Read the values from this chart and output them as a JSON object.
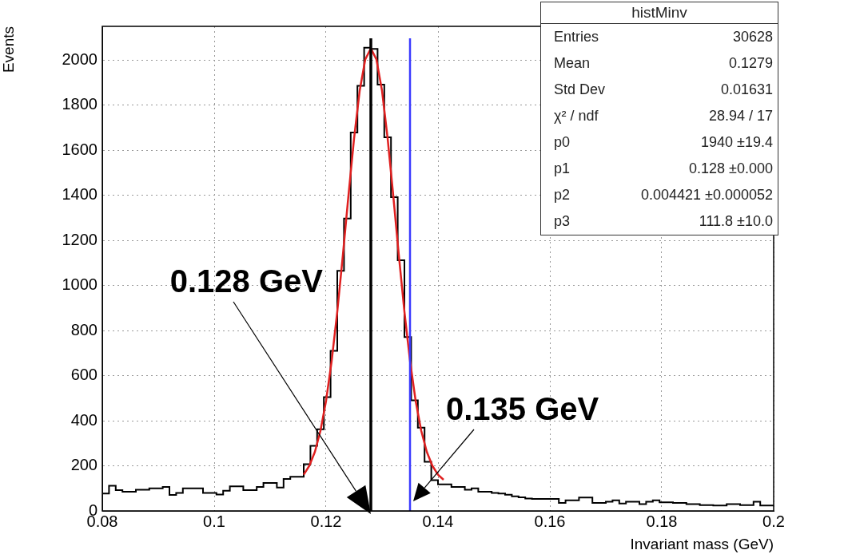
{
  "chart_data": {
    "type": "histogram",
    "xlabel": "Invariant mass (GeV)",
    "ylabel": "Events",
    "color": "#000000",
    "bins": [
      0.08,
      0.0812,
      0.0824,
      0.0836,
      0.0848,
      0.086,
      0.0872,
      0.0884,
      0.0896,
      0.0908,
      0.092,
      0.0932,
      0.0944,
      0.0956,
      0.0968,
      0.098,
      0.0992,
      0.1004,
      0.1016,
      0.1028,
      0.104,
      0.1052,
      0.1064,
      0.1076,
      0.1088,
      0.11,
      0.1112,
      0.1124,
      0.1136,
      0.1148,
      0.116,
      0.1172,
      0.1184,
      0.1196,
      0.1208,
      0.122,
      0.1232,
      0.1244,
      0.1256,
      0.1268,
      0.128,
      0.1292,
      0.1304,
      0.1316,
      0.1328,
      0.134,
      0.1352,
      0.1364,
      0.1376,
      0.1388,
      0.14,
      0.1412,
      0.1424,
      0.1436,
      0.1448,
      0.146,
      0.1472,
      0.1484,
      0.1496,
      0.1508,
      0.152,
      0.1532,
      0.1544,
      0.1556,
      0.1568,
      0.158,
      0.1592,
      0.1604,
      0.1616,
      0.1628,
      0.164,
      0.1652,
      0.1664,
      0.1676,
      0.1688,
      0.17,
      0.1712,
      0.1724,
      0.1736,
      0.1748,
      0.176,
      0.1772,
      0.1784,
      0.1796,
      0.1808,
      0.182,
      0.1832,
      0.1844,
      0.1856,
      0.1868,
      0.188,
      0.1892,
      0.1904,
      0.1916,
      0.1928,
      0.194,
      0.1952,
      0.1964,
      0.1976,
      0.1988,
      0.2
    ],
    "values": [
      77,
      112,
      92,
      85,
      85,
      94,
      94,
      100,
      100,
      106,
      71,
      80,
      100,
      100,
      100,
      80,
      80,
      73,
      89,
      109,
      109,
      92,
      92,
      106,
      124,
      124,
      104,
      142,
      151,
      151,
      207,
      289,
      362,
      505,
      710,
      1065,
      1297,
      1679,
      1886,
      2055,
      2050,
      1891,
      1658,
      1392,
      1112,
      771,
      491,
      369,
      218,
      136,
      118,
      118,
      106,
      106,
      94,
      100,
      85,
      85,
      80,
      77,
      72,
      65,
      60,
      55,
      53,
      53,
      53,
      53,
      35,
      47,
      47,
      59,
      59,
      35,
      35,
      41,
      47,
      33,
      41,
      41,
      30,
      41,
      47,
      38,
      38,
      35,
      35,
      30,
      30,
      26,
      26,
      24,
      24,
      30,
      30,
      26,
      26,
      41,
      24,
      24
    ],
    "series": [
      {
        "type": "line",
        "color": "#e02020",
        "x": [
          0.116,
          0.117,
          0.118,
          0.119,
          0.12,
          0.121,
          0.122,
          0.123,
          0.124,
          0.125,
          0.126,
          0.127,
          0.128,
          0.129,
          0.13,
          0.131,
          0.132,
          0.133,
          0.134,
          0.135,
          0.136,
          0.137,
          0.138,
          0.139,
          0.14,
          0.141
        ],
        "values": [
          161,
          200,
          262,
          356,
          489,
          666,
          884,
          1135,
          1400,
          1653,
          1864,
          2003,
          2052,
          2003,
          1864,
          1653,
          1400,
          1135,
          884,
          666,
          489,
          356,
          262,
          200,
          161,
          138
        ]
      }
    ],
    "xlim": [
      0.08,
      0.2
    ],
    "xticks": [
      0.08,
      0.1,
      0.12,
      0.14,
      0.16,
      0.18,
      0.2
    ],
    "ylim": [
      0,
      2150
    ],
    "yticks": [
      0,
      200,
      400,
      600,
      800,
      1000,
      1200,
      1400,
      1600,
      1800,
      2000
    ],
    "grid": true,
    "legend": false,
    "ref_lines": [
      {
        "axis": "x",
        "value": 0.128,
        "label": "0.128 GeV",
        "color": "#000000"
      },
      {
        "axis": "x",
        "value": 0.135,
        "label": "0.135 GeV",
        "color": "#3a3aff"
      }
    ],
    "annotations": [
      "histMinv",
      "Entries",
      "30628",
      "Mean",
      "0.1279",
      "Std Dev",
      "0.01631",
      "χ² / ndf",
      "28.94 / 17",
      "p0",
      "1940 ±19.4",
      "p1",
      "0.128 ±0.000",
      "p2",
      "0.004421 ±0.000052",
      "p3",
      "111.8 ±10.0"
    ]
  }
}
